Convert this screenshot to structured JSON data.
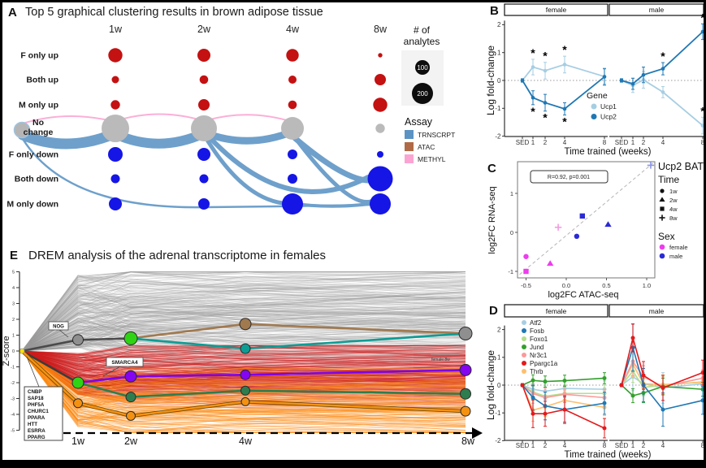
{
  "panels": {
    "A": {
      "letter": "A",
      "title": "Top 5 graphical clustering results in brown adipose tissue"
    },
    "B": {
      "letter": "B"
    },
    "C": {
      "letter": "C"
    },
    "D": {
      "letter": "D"
    },
    "E": {
      "letter": "E",
      "title": "DREM analysis of the adrenal transcriptome in females"
    }
  },
  "chart_data": [
    {
      "type": "bubble-flow",
      "panel": "A",
      "columns": [
        "1w",
        "2w",
        "4w",
        "8w"
      ],
      "rows": [
        "F only up",
        "Both up",
        "M only up",
        "No change",
        "F only down",
        "Both down",
        "M only down"
      ],
      "bubble_radius_px": {
        "1w": [
          8.7,
          4.5,
          5.7,
          17,
          9,
          5.5,
          8
        ],
        "2w": [
          8,
          5.3,
          7,
          16,
          8,
          5.5,
          7
        ],
        "4w": [
          7.7,
          5,
          5.3,
          14,
          6,
          6,
          13
        ],
        "8w": [
          2.7,
          7,
          8.7,
          5.7,
          4,
          15.5,
          13
        ]
      },
      "bubble_colors": {
        "up": "#c41111",
        "no_change": "#bababa",
        "down": "#1515e6"
      },
      "size_legend": {
        "title": "# of analytes",
        "items": [
          {
            "label": "100",
            "radius_px": 9
          },
          {
            "label": "200",
            "radius_px": 13
          }
        ]
      },
      "assay_legend": {
        "title": "Assay",
        "items": [
          {
            "label": "TRNSCRPT",
            "color": "#5b93c4"
          },
          {
            "label": "ATAC",
            "color": "#b06a45"
          },
          {
            "label": "METHYL",
            "color": "#fba4d2"
          }
        ]
      },
      "flows": [
        {
          "assay": "TRNSCRPT",
          "w": 13,
          "q": [
            25,
            163,
            80,
            186,
            139,
            161
          ]
        },
        {
          "assay": "TRNSCRPT",
          "w": 12,
          "q": [
            139,
            162,
            193,
            186,
            248,
            161
          ]
        },
        {
          "assay": "TRNSCRPT",
          "w": 9,
          "q": [
            248,
            160,
            302,
            181,
            357,
            159
          ]
        },
        {
          "assay": "METHYL",
          "w": 2,
          "q": [
            25,
            149,
            80,
            132,
            139,
            147
          ]
        },
        {
          "assay": "METHYL",
          "w": 2,
          "q": [
            139,
            146,
            193,
            129,
            248,
            146
          ]
        },
        {
          "assay": "METHYL",
          "w": 2,
          "q": [
            248,
            146,
            302,
            130,
            357,
            147
          ]
        },
        {
          "assay": "TRNSCRPT",
          "w": 5,
          "q": [
            250,
            166,
            295,
            240,
            345,
            247
          ]
        },
        {
          "assay": "TRNSCRPT",
          "w": 6,
          "q": [
            253,
            164,
            350,
            268,
            450,
            215
          ]
        },
        {
          "assay": "TRNSCRPT",
          "w": 7,
          "q": [
            360,
            167,
            420,
            218,
            450,
            219
          ]
        },
        {
          "assay": "TRNSCRPT",
          "w": 5,
          "q": [
            362,
            169,
            425,
            252,
            453,
            245
          ]
        },
        {
          "assay": "TRNSCRPT",
          "w": 4,
          "q": [
            370,
            249,
            410,
            253,
            452,
            248
          ]
        },
        {
          "assay": "TRNSCRPT",
          "w": 2.5,
          "q2": [
            25,
            168,
            80,
            255,
            248,
            252,
            360,
            251,
            452,
            249
          ]
        }
      ]
    },
    {
      "type": "line",
      "panel": "B",
      "facets": [
        "female",
        "male"
      ],
      "x_ticklabels": [
        "SED",
        "1",
        "2",
        "4",
        "8"
      ],
      "xlabel": "Time trained (weeks)",
      "ylabel": "Log fold-change",
      "ylim": [
        -2,
        2
      ],
      "yticks": [
        2,
        1,
        0,
        -1,
        -2
      ],
      "legend_title": "Gene",
      "series": [
        {
          "name": "Ucp1",
          "color": "#a6cee3",
          "female": {
            "y": [
              0,
              0.48,
              0.35,
              0.57,
              0.14
            ],
            "err": [
              0.06,
              0.28,
              0.3,
              0.3,
              0.27
            ],
            "sig_above": [
              1,
              2,
              3
            ],
            "sig_below": []
          },
          "male": {
            "y": [
              0,
              -0.18,
              0.02,
              -0.42,
              -1.62
            ],
            "err": [
              0.06,
              0.25,
              0.3,
              0.2,
              0.3
            ],
            "sig_above": [
              4
            ],
            "sig_below": []
          }
        },
        {
          "name": "Ucp2",
          "color": "#1f78b4",
          "female": {
            "y": [
              0,
              -0.62,
              -0.8,
              -1.02,
              0.13
            ],
            "err": [
              0.06,
              0.25,
              0.3,
              0.22,
              0.3
            ],
            "sig_above": [],
            "sig_below": [
              1,
              2,
              3
            ]
          },
          "male": {
            "y": [
              0,
              -0.12,
              0.2,
              0.42,
              1.75
            ],
            "err": [
              0.06,
              0.2,
              0.28,
              0.22,
              0.28
            ],
            "sig_above": [
              3,
              4
            ],
            "sig_below": []
          }
        }
      ]
    },
    {
      "type": "scatter",
      "panel": "C",
      "annotation": "R=0.92, p=0.001",
      "legend_title": "Ucp2 BAT",
      "xlabel": "log2FC ATAC-seq",
      "ylabel": "log2FC RNA-seq",
      "x_ticks": [
        "-0.5",
        "0.0",
        "0.5",
        "1.0"
      ],
      "y_ticks": [
        "1",
        "0",
        "-1"
      ],
      "xlim": [
        -0.65,
        1.1
      ],
      "ylim": [
        -1.15,
        1.8
      ],
      "shape_legend": {
        "title": "Time",
        "items": [
          {
            "label": "1w",
            "shape": "circle"
          },
          {
            "label": "2w",
            "shape": "triangle"
          },
          {
            "label": "4w",
            "shape": "square"
          },
          {
            "label": "8w",
            "shape": "plus"
          }
        ]
      },
      "color_legend": {
        "title": "Sex",
        "items": [
          {
            "label": "female",
            "color": "#ee3cee"
          },
          {
            "label": "male",
            "color": "#2a2ad6"
          }
        ]
      },
      "light_colors": {
        "female": "#f49ae0",
        "male": "#8b96e8"
      },
      "points": [
        {
          "sex": "female",
          "time": "1w",
          "shape": "circle",
          "x": -0.5,
          "y": -0.62
        },
        {
          "sex": "female",
          "time": "2w",
          "shape": "triangle",
          "x": -0.2,
          "y": -0.8
        },
        {
          "sex": "female",
          "time": "4w",
          "shape": "square",
          "x": -0.5,
          "y": -1.0
        },
        {
          "sex": "female",
          "time": "8w",
          "shape": "plus",
          "x": -0.1,
          "y": 0.13
        },
        {
          "sex": "male",
          "time": "1w",
          "shape": "circle",
          "x": 0.13,
          "y": -0.1
        },
        {
          "sex": "male",
          "time": "2w",
          "shape": "triangle",
          "x": 0.52,
          "y": 0.2
        },
        {
          "sex": "male",
          "time": "4w",
          "shape": "square",
          "x": 0.2,
          "y": 0.42
        },
        {
          "sex": "male",
          "time": "8w",
          "shape": "plus",
          "x": 1.05,
          "y": 1.72
        }
      ],
      "trend_line": {
        "x1": -0.58,
        "y1": -1.08,
        "x2": 1.08,
        "y2": 1.78
      }
    },
    {
      "type": "line",
      "panel": "D",
      "facets": [
        "female",
        "male"
      ],
      "x_ticklabels": [
        "SED",
        "1",
        "2",
        "4",
        "8"
      ],
      "xlabel": "Time trained (weeks)",
      "ylabel": "Log fold-change",
      "ylim": [
        -2,
        2
      ],
      "yticks": [
        2,
        1,
        0,
        -1,
        -2
      ],
      "legend_title": "",
      "series": [
        {
          "name": "Atf2",
          "color": "#a6cee3",
          "female": {
            "y": [
              0,
              -0.15,
              -0.22,
              -0.12,
              -0.15
            ],
            "err": [
              0.05,
              0.3,
              0.3,
              0.3,
              0.3
            ],
            "sig_above": [],
            "sig_below": []
          },
          "male": {
            "y": [
              0,
              0.3,
              0.05,
              -0.1,
              0.05
            ],
            "err": [
              0.05,
              0.5,
              0.4,
              0.55,
              0.45
            ],
            "sig_above": [],
            "sig_below": []
          }
        },
        {
          "name": "Fosb",
          "color": "#1f78b4",
          "female": {
            "y": [
              0,
              -0.45,
              -0.75,
              -0.88,
              -0.65
            ],
            "err": [
              0.05,
              0.45,
              0.5,
              0.45,
              0.4
            ],
            "sig_above": [],
            "sig_below": []
          },
          "male": {
            "y": [
              0,
              1.35,
              0.0,
              -0.88,
              -0.55
            ],
            "err": [
              0.05,
              0.85,
              0.6,
              0.6,
              0.5
            ],
            "sig_above": [],
            "sig_below": []
          }
        },
        {
          "name": "Foxo1",
          "color": "#b2df8a",
          "female": {
            "y": [
              0,
              -0.25,
              -0.4,
              -0.3,
              -0.3
            ],
            "err": [
              0.05,
              0.3,
              0.3,
              0.3,
              0.3
            ],
            "sig_above": [],
            "sig_below": []
          },
          "male": {
            "y": [
              0,
              0.5,
              -0.08,
              0.0,
              0.12
            ],
            "err": [
              0.05,
              0.4,
              0.3,
              0.3,
              0.3
            ],
            "sig_above": [],
            "sig_below": []
          }
        },
        {
          "name": "Jund",
          "color": "#33a02c",
          "female": {
            "y": [
              0,
              0.17,
              0.13,
              0.16,
              0.25
            ],
            "err": [
              0.05,
              0.2,
              0.2,
              0.2,
              0.2
            ],
            "sig_above": [],
            "sig_below": []
          },
          "male": {
            "y": [
              0,
              -0.38,
              -0.28,
              -0.05,
              -0.15
            ],
            "err": [
              0.05,
              0.25,
              0.35,
              0.3,
              0.25
            ],
            "sig_above": [],
            "sig_below": []
          }
        },
        {
          "name": "Nr3c1",
          "color": "#fb9a99",
          "female": {
            "y": [
              0,
              -0.3,
              -0.45,
              -0.33,
              -0.45
            ],
            "err": [
              0.05,
              0.35,
              0.35,
              0.3,
              0.3
            ],
            "sig_above": [],
            "sig_below": []
          },
          "male": {
            "y": [
              0,
              0.85,
              0.3,
              -0.05,
              0.25
            ],
            "err": [
              0.05,
              0.5,
              0.4,
              0.3,
              0.3
            ],
            "sig_above": [],
            "sig_below": []
          }
        },
        {
          "name": "Ppargc1a",
          "color": "#e31a1c",
          "female": {
            "y": [
              0,
              -1.03,
              -1.03,
              -0.88,
              -1.55
            ],
            "err": [
              0.05,
              0.5,
              0.45,
              0.5,
              0.35
            ],
            "sig_above": [],
            "sig_below": []
          },
          "male": {
            "y": [
              0,
              1.7,
              0.35,
              -0.1,
              0.45
            ],
            "err": [
              0.05,
              0.5,
              0.5,
              0.45,
              0.45
            ],
            "sig_above": [],
            "sig_below": []
          }
        },
        {
          "name": "Thrb",
          "color": "#fdbf6f",
          "female": {
            "y": [
              0,
              -0.9,
              -0.78,
              -0.55,
              -0.8
            ],
            "err": [
              0.05,
              0.4,
              0.35,
              0.35,
              0.3
            ],
            "sig_above": [],
            "sig_below": []
          },
          "male": {
            "y": [
              0,
              0.75,
              0.05,
              0.02,
              0.1
            ],
            "err": [
              0.05,
              0.45,
              0.35,
              0.35,
              0.3
            ],
            "sig_above": [],
            "sig_below": []
          }
        }
      ]
    },
    {
      "type": "trajectory",
      "panel": "E",
      "ylabel": "Z-score",
      "ylim": [
        -5,
        5
      ],
      "yticks": [
        5,
        4,
        3,
        2,
        1,
        0,
        -1,
        -2,
        -3,
        -4,
        -5
      ],
      "x_labels": [
        "1w",
        "2w",
        "4w",
        "8w"
      ],
      "gene_box": [
        "CNBP",
        "SAP18",
        "PHF5A",
        "CHURC1",
        "PPARA",
        "HTT",
        "ESRRA",
        "PPARG"
      ],
      "annotations": {
        "nog": "NOG",
        "smarca4": "SMARCA4",
        "right_label": "female.8w"
      },
      "background": [
        {
          "name": "gray-trajectories",
          "color": "#9b9b9b",
          "count": 300,
          "opacity": 0.3
        },
        {
          "name": "red-trajectories",
          "color": "#cf1f1f",
          "count": 300,
          "opacity": 0.33
        },
        {
          "name": "orange-trajectories",
          "color": "#fd8a10",
          "count": 170,
          "opacity": 0.38
        }
      ],
      "paths": [
        {
          "name": "up-main",
          "z": [
            0,
            0.7,
            0.8,
            1.7,
            1.1
          ],
          "seg_colors": [
            "#4a4a4a",
            "#4a4a4a",
            "#a0794f",
            "#a0794f"
          ],
          "nodes": [
            [
              1,
              "#8f8f8f",
              6.5
            ],
            [
              2,
              "#2ed414",
              8
            ],
            [
              3,
              "#a0794f",
              7
            ],
            [
              4,
              "#8f8f8f",
              8
            ]
          ]
        },
        {
          "name": "teal-branch",
          "z": [
            null,
            null,
            0.8,
            0.15,
            1.1
          ],
          "seg_colors": [
            null,
            null,
            "#0d9c94",
            "#0d9c94"
          ],
          "nodes": [
            [
              3,
              "#0d9c94",
              6
            ]
          ]
        },
        {
          "name": "purple-path",
          "z": [
            0,
            -2.0,
            -1.6,
            -1.5,
            -1.2
          ],
          "seg_colors": [
            "#3c3c3c",
            "#7c05ea",
            "#7c05ea",
            "#7c05ea"
          ],
          "nodes": [
            [
              1,
              "#2ed414",
              7
            ],
            [
              2,
              "#8405f0",
              7
            ],
            [
              3,
              "#8405f0",
              6
            ],
            [
              4,
              "#8405f0",
              7
            ]
          ]
        },
        {
          "name": "green-path",
          "z": [
            null,
            -2.0,
            -2.9,
            -2.5,
            -2.7
          ],
          "seg_colors": [
            null,
            "#2e7d4f",
            "#2e7d4f",
            "#2e7d4f"
          ],
          "nodes": [
            [
              2,
              "#2e7d4f",
              6
            ],
            [
              3,
              "#2e7d4f",
              5.5
            ],
            [
              4,
              "#2e7d4f",
              6.5
            ]
          ]
        },
        {
          "name": "orange-path",
          "z": [
            0,
            -3.3,
            -4.1,
            -3.2,
            -3.8
          ],
          "seg_colors": [
            "#f59110",
            "#f59110",
            "#f59110",
            "#f59110"
          ],
          "outline": "#6b4500",
          "nodes": [
            [
              1,
              "#f59110",
              5.5
            ],
            [
              2,
              "#f59110",
              5.5
            ],
            [
              3,
              "#f59110",
              5
            ],
            [
              4,
              "#f59110",
              6
            ]
          ]
        }
      ],
      "start_dot_color": "#ffe000"
    }
  ]
}
